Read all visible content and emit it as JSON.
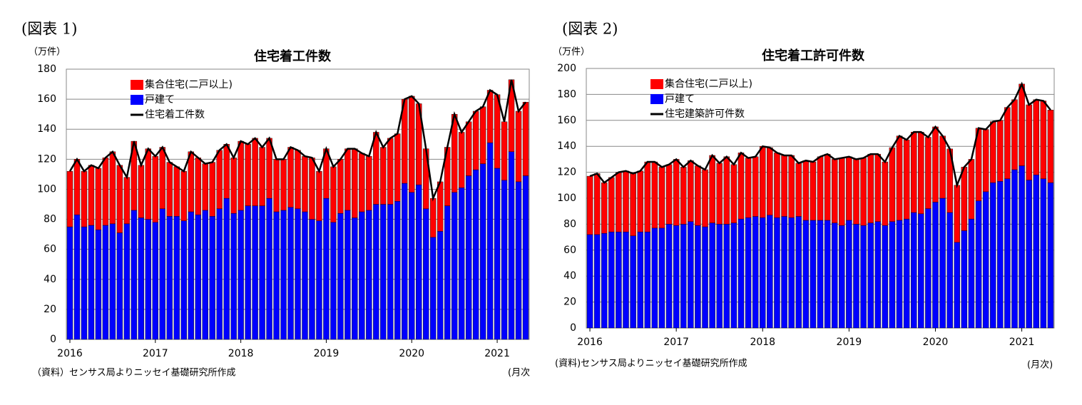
{
  "chart_data": [
    {
      "type": "stacked_bar_line",
      "figure_label": "(図表 1)",
      "title": "住宅着工件数",
      "y_unit": "（万件）",
      "x_unit": "(月次",
      "source": "（資料）センサス局よりニッセイ基礎研究所作成",
      "legend": "upper left",
      "categories": [
        "2016",
        null,
        null,
        null,
        null,
        null,
        null,
        null,
        null,
        null,
        null,
        null,
        "2017",
        null,
        null,
        null,
        null,
        null,
        null,
        null,
        null,
        null,
        null,
        null,
        "2018",
        null,
        null,
        null,
        null,
        null,
        null,
        null,
        null,
        null,
        null,
        null,
        "2019",
        null,
        null,
        null,
        null,
        null,
        null,
        null,
        null,
        null,
        null,
        null,
        "2020",
        null,
        null,
        null,
        null,
        null,
        null,
        null,
        null,
        null,
        null,
        null,
        "2021",
        null,
        null,
        null,
        null
      ],
      "ylim": [
        0,
        180
      ],
      "yticks": [
        0,
        20,
        40,
        60,
        80,
        100,
        120,
        140,
        160,
        180
      ],
      "grid": true,
      "series": [
        {
          "name": "集合住宅(二戸以上)",
          "color": "#ff0000",
          "kind": "bar",
          "values": [
            37,
            37,
            37,
            40,
            41,
            45,
            48,
            45,
            31,
            46,
            35,
            47,
            44,
            41,
            36,
            33,
            33,
            40,
            38,
            31,
            36,
            39,
            36,
            37,
            46,
            41,
            45,
            39,
            40,
            35,
            34,
            40,
            39,
            37,
            41,
            33,
            33,
            37,
            36,
            41,
            46,
            39,
            36,
            48,
            38,
            44,
            45,
            56,
            64,
            54,
            40,
            26,
            33,
            39,
            52,
            37,
            36,
            39,
            38,
            35,
            49,
            39,
            48,
            47,
            49
          ]
        },
        {
          "name": "戸建て",
          "color": "#0000ff",
          "kind": "bar",
          "values": [
            75,
            83,
            75,
            76,
            73,
            76,
            77,
            71,
            77,
            86,
            81,
            80,
            78,
            87,
            82,
            82,
            79,
            85,
            83,
            86,
            82,
            87,
            94,
            84,
            86,
            89,
            89,
            89,
            94,
            85,
            86,
            88,
            87,
            85,
            80,
            79,
            94,
            78,
            84,
            86,
            81,
            85,
            86,
            90,
            90,
            90,
            92,
            104,
            98,
            103,
            87,
            68,
            72,
            89,
            98,
            101,
            109,
            113,
            117,
            131,
            114,
            106,
            125,
            105,
            109
          ]
        },
        {
          "name": "住宅着工件数",
          "color": "#000000",
          "kind": "line",
          "values": [
            112,
            120,
            112,
            116,
            114,
            121,
            125,
            116,
            108,
            132,
            116,
            127,
            122,
            128,
            118,
            115,
            112,
            125,
            121,
            117,
            118,
            126,
            130,
            121,
            132,
            130,
            134,
            128,
            134,
            120,
            120,
            128,
            126,
            122,
            121,
            112,
            127,
            115,
            120,
            127,
            127,
            124,
            122,
            138,
            128,
            134,
            137,
            160,
            162,
            157,
            127,
            94,
            105,
            128,
            150,
            138,
            145,
            152,
            155,
            166,
            163,
            145,
            173,
            152,
            158
          ]
        }
      ]
    },
    {
      "type": "stacked_bar_line",
      "figure_label": "(図表 2)",
      "title": "住宅着工許可件数",
      "y_unit": "（万件）",
      "x_unit": "(月次)",
      "source": "(資料)センサス局よりニッセイ基礎研究所作成",
      "legend": "upper left",
      "categories": [
        "2016",
        null,
        null,
        null,
        null,
        null,
        null,
        null,
        null,
        null,
        null,
        null,
        "2017",
        null,
        null,
        null,
        null,
        null,
        null,
        null,
        null,
        null,
        null,
        null,
        "2018",
        null,
        null,
        null,
        null,
        null,
        null,
        null,
        null,
        null,
        null,
        null,
        "2019",
        null,
        null,
        null,
        null,
        null,
        null,
        null,
        null,
        null,
        null,
        null,
        "2020",
        null,
        null,
        null,
        null,
        null,
        null,
        null,
        null,
        null,
        null,
        null,
        "2021",
        null,
        null,
        null,
        null
      ],
      "ylim": [
        0,
        200
      ],
      "yticks": [
        0,
        20,
        40,
        60,
        80,
        100,
        120,
        140,
        160,
        180,
        200
      ],
      "grid": true,
      "series": [
        {
          "name": "集合住宅(二戸以上)",
          "color": "#ff0000",
          "kind": "bar",
          "values": [
            45,
            47,
            39,
            42,
            46,
            47,
            48,
            47,
            54,
            51,
            47,
            46,
            51,
            44,
            47,
            46,
            44,
            52,
            47,
            52,
            45,
            51,
            46,
            46,
            55,
            52,
            50,
            47,
            48,
            41,
            46,
            45,
            49,
            51,
            49,
            52,
            49,
            50,
            52,
            53,
            52,
            49,
            57,
            65,
            61,
            62,
            63,
            55,
            58,
            48,
            49,
            44,
            49,
            46,
            56,
            48,
            47,
            47,
            55,
            54,
            63,
            58,
            58,
            60,
            56
          ]
        },
        {
          "name": "戸建て",
          "color": "#0000ff",
          "kind": "bar",
          "values": [
            72,
            72,
            73,
            74,
            74,
            74,
            71,
            74,
            74,
            77,
            77,
            80,
            79,
            80,
            82,
            79,
            78,
            81,
            80,
            80,
            81,
            84,
            85,
            86,
            85,
            87,
            85,
            86,
            85,
            86,
            83,
            83,
            83,
            83,
            81,
            79,
            83,
            80,
            79,
            81,
            82,
            79,
            82,
            83,
            84,
            89,
            88,
            92,
            97,
            100,
            89,
            66,
            75,
            84,
            98,
            105,
            112,
            113,
            115,
            122,
            125,
            114,
            118,
            115,
            112
          ]
        },
        {
          "name": "住宅建築許可件数",
          "color": "#000000",
          "kind": "line",
          "values": [
            117,
            119,
            112,
            116,
            120,
            121,
            119,
            121,
            128,
            128,
            124,
            126,
            130,
            124,
            129,
            125,
            122,
            133,
            127,
            132,
            126,
            135,
            131,
            132,
            140,
            139,
            135,
            133,
            133,
            127,
            129,
            128,
            132,
            134,
            130,
            131,
            132,
            130,
            131,
            134,
            134,
            128,
            139,
            148,
            145,
            151,
            151,
            147,
            155,
            148,
            138,
            110,
            124,
            130,
            154,
            153,
            159,
            160,
            170,
            176,
            188,
            172,
            176,
            175,
            168
          ]
        }
      ]
    }
  ]
}
